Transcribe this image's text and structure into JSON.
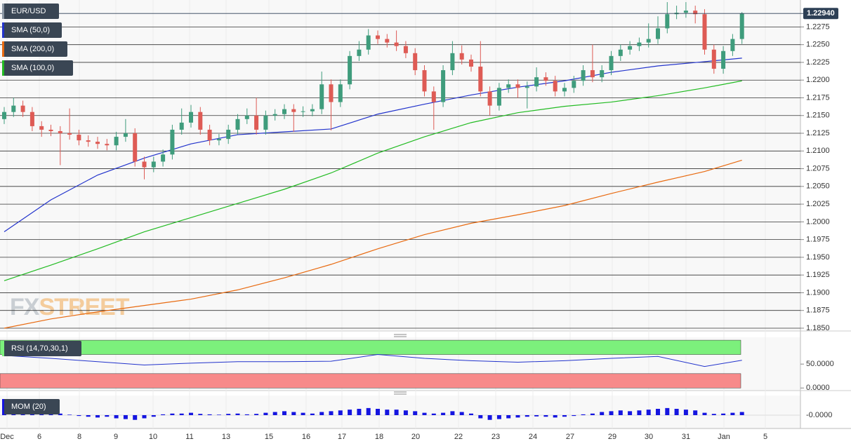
{
  "chart_data": {
    "type": "candlestick",
    "symbol": "EUR/USD",
    "last_price": {
      "value": 1.2294,
      "label": "1.22940"
    },
    "up_color": "#3f9c7c",
    "down_color": "#de5b55",
    "candles": {
      "open": [
        1.2145,
        1.2155,
        1.2164,
        1.2155,
        1.2135,
        1.213,
        1.2128,
        1.2125,
        1.2123,
        1.2115,
        1.2113,
        1.211,
        1.2108,
        1.212,
        1.2125,
        1.2085,
        1.2077,
        1.2085,
        1.2095,
        1.213,
        1.214,
        1.2155,
        1.213,
        1.2115,
        1.2117,
        1.213,
        1.2145,
        1.215,
        1.213,
        1.215,
        1.2152,
        1.2159,
        1.2155,
        1.2156,
        1.2159,
        1.2194,
        1.2169,
        1.2194,
        1.2234,
        1.2243,
        1.2263,
        1.2258,
        1.2253,
        1.2248,
        1.2238,
        1.2214,
        1.2184,
        1.2169,
        1.2214,
        1.2238,
        1.2229,
        1.2219,
        1.2184,
        1.2164,
        1.2189,
        1.2194,
        1.2189,
        1.2191,
        1.2204,
        1.2199,
        1.2184,
        1.2189,
        1.2199,
        1.2214,
        1.2204,
        1.2214,
        1.2234,
        1.2243,
        1.2248,
        1.2253,
        1.2258,
        1.2273,
        1.2293,
        1.2295,
        1.2298,
        1.2293,
        1.2243,
        1.2216,
        1.2241,
        1.2258
      ],
      "high": [
        1.2162,
        1.2175,
        1.2171,
        1.2162,
        1.2142,
        1.2137,
        1.2135,
        1.216,
        1.213,
        1.2122,
        1.212,
        1.2117,
        1.2127,
        1.2145,
        1.2132,
        1.2092,
        1.2092,
        1.2102,
        1.2137,
        1.216,
        1.2165,
        1.2162,
        1.2137,
        1.2124,
        1.2137,
        1.2152,
        1.216,
        1.2175,
        1.2157,
        1.2159,
        1.2166,
        1.2166,
        1.2163,
        1.2166,
        1.2212,
        1.2201,
        1.2201,
        1.2241,
        1.2255,
        1.2272,
        1.227,
        1.2265,
        1.227,
        1.2255,
        1.2245,
        1.2221,
        1.2191,
        1.2221,
        1.2255,
        1.2249,
        1.2236,
        1.2255,
        1.2191,
        1.2196,
        1.2201,
        1.2201,
        1.2198,
        1.2218,
        1.2211,
        1.2206,
        1.2196,
        1.2206,
        1.2221,
        1.225,
        1.2221,
        1.2241,
        1.225,
        1.2255,
        1.226,
        1.228,
        1.229,
        1.231,
        1.2305,
        1.231,
        1.2305,
        1.23,
        1.225,
        1.2248,
        1.2265,
        1.2296
      ],
      "low": [
        1.2138,
        1.2148,
        1.2148,
        1.2128,
        1.212,
        1.2121,
        1.208,
        1.2116,
        1.2108,
        1.2106,
        1.2103,
        1.2101,
        1.2101,
        1.2113,
        1.2078,
        1.206,
        1.207,
        1.2078,
        1.2088,
        1.2123,
        1.2133,
        1.2123,
        1.2108,
        1.2108,
        1.211,
        1.2123,
        1.2138,
        1.2123,
        1.2123,
        1.2143,
        1.2145,
        1.2127,
        1.2148,
        1.2149,
        1.2152,
        1.2129,
        1.2162,
        1.2187,
        1.2227,
        1.2236,
        1.2251,
        1.2246,
        1.2241,
        1.2231,
        1.2207,
        1.2177,
        1.213,
        1.2162,
        1.2207,
        1.2222,
        1.2212,
        1.2177,
        1.215,
        1.2157,
        1.2182,
        1.2175,
        1.216,
        1.2184,
        1.2192,
        1.2177,
        1.2177,
        1.2182,
        1.2192,
        1.2197,
        1.2197,
        1.2207,
        1.2227,
        1.2236,
        1.2241,
        1.2246,
        1.2251,
        1.2266,
        1.2286,
        1.2288,
        1.228,
        1.2236,
        1.2209,
        1.2209,
        1.2234,
        1.2251
      ],
      "close": [
        1.2155,
        1.2164,
        1.2155,
        1.2135,
        1.213,
        1.2128,
        1.2125,
        1.2123,
        1.2115,
        1.2113,
        1.211,
        1.2108,
        1.212,
        1.2125,
        1.2085,
        1.2077,
        1.2085,
        1.2095,
        1.213,
        1.214,
        1.2155,
        1.213,
        1.2115,
        1.2117,
        1.213,
        1.2145,
        1.215,
        1.213,
        1.215,
        1.2152,
        1.2159,
        1.2155,
        1.2156,
        1.2159,
        1.2194,
        1.2169,
        1.2194,
        1.2234,
        1.2243,
        1.2263,
        1.2258,
        1.2253,
        1.2248,
        1.2238,
        1.2214,
        1.2184,
        1.2169,
        1.2214,
        1.2238,
        1.2229,
        1.2219,
        1.2184,
        1.2164,
        1.2189,
        1.2194,
        1.2189,
        1.2191,
        1.2204,
        1.2199,
        1.2184,
        1.2189,
        1.2199,
        1.2214,
        1.2204,
        1.2214,
        1.2234,
        1.2243,
        1.2248,
        1.2253,
        1.2258,
        1.2273,
        1.2293,
        1.2295,
        1.2298,
        1.2293,
        1.2243,
        1.2216,
        1.2241,
        1.2258,
        1.2294
      ]
    },
    "ylim": [
      1.1848,
      1.2313
    ],
    "yticks": [
      {
        "value": 1.185,
        "label": "1.1850"
      },
      {
        "value": 1.1875,
        "label": "1.1875"
      },
      {
        "value": 1.19,
        "label": "1.1900"
      },
      {
        "value": 1.1925,
        "label": "1.1925"
      },
      {
        "value": 1.195,
        "label": "1.1950"
      },
      {
        "value": 1.1975,
        "label": "1.1975"
      },
      {
        "value": 1.2,
        "label": "1.2000"
      },
      {
        "value": 1.2025,
        "label": "1.2025"
      },
      {
        "value": 1.205,
        "label": "1.2050"
      },
      {
        "value": 1.2075,
        "label": "1.2075"
      },
      {
        "value": 1.21,
        "label": "1.2100"
      },
      {
        "value": 1.2125,
        "label": "1.2125"
      },
      {
        "value": 1.215,
        "label": "1.2150"
      },
      {
        "value": 1.2175,
        "label": "1.2175"
      },
      {
        "value": 1.22,
        "label": "1.2200"
      },
      {
        "value": 1.2225,
        "label": "1.2225"
      },
      {
        "value": 1.225,
        "label": "1.2250"
      },
      {
        "value": 1.2275,
        "label": "1.2275"
      }
    ],
    "xticks": [
      "Dec",
      "6",
      "8",
      "9",
      "10",
      "11",
      "13",
      "15",
      "16",
      "17",
      "18",
      "20",
      "22",
      "23",
      "24",
      "27",
      "29",
      "30",
      "31",
      "Jan",
      "5"
    ],
    "overlays": [
      {
        "name": "SMA (50,0)",
        "color": "#2233cc",
        "x": [
          0,
          5,
          10,
          15,
          20,
          25,
          30,
          35,
          40,
          45,
          50,
          55,
          60,
          65,
          70,
          75,
          79
        ],
        "values": [
          1.1986,
          1.2031,
          1.2066,
          1.209,
          1.211,
          1.2123,
          1.2127,
          1.2131,
          1.2152,
          1.2166,
          1.2179,
          1.219,
          1.2199,
          1.2211,
          1.222,
          1.2226,
          1.2231
        ]
      },
      {
        "name": "SMA (200,0)",
        "color": "#e86a10",
        "x": [
          0,
          5,
          10,
          15,
          20,
          25,
          30,
          35,
          40,
          45,
          50,
          55,
          60,
          65,
          70,
          75,
          79
        ],
        "values": [
          1.185,
          1.1863,
          1.1873,
          1.1882,
          1.1891,
          1.1904,
          1.1921,
          1.194,
          1.1962,
          1.1982,
          1.1998,
          1.201,
          1.2023,
          1.204,
          1.2056,
          1.2071,
          1.2087
        ]
      },
      {
        "name": "SMA (100,0)",
        "color": "#22bb22",
        "x": [
          0,
          5,
          10,
          15,
          20,
          25,
          30,
          35,
          40,
          45,
          50,
          55,
          60,
          65,
          70,
          75,
          79
        ],
        "values": [
          1.1917,
          1.1939,
          1.1962,
          1.1986,
          1.2006,
          1.2026,
          1.2046,
          1.2069,
          1.2097,
          1.212,
          1.214,
          1.2154,
          1.2163,
          1.2169,
          1.2178,
          1.2189,
          1.2199
        ]
      }
    ],
    "watermark": [
      "FX",
      "STREET"
    ],
    "rsi": {
      "name": "RSI (14,70,30,1)",
      "color": "#2233cc",
      "x": [
        0,
        5,
        10,
        15,
        20,
        25,
        30,
        35,
        40,
        45,
        50,
        55,
        60,
        65,
        70,
        75,
        79
      ],
      "values": [
        68,
        62,
        55,
        48,
        52,
        55,
        55,
        56,
        70,
        62,
        57,
        54,
        57,
        62,
        66,
        45,
        58
      ],
      "ylim": [
        -4,
        106
      ],
      "overbought": [
        70,
        100
      ],
      "oversold": [
        0,
        30
      ],
      "upper_color": "#7cf07c",
      "lower_color": "#f78a8a",
      "yticks": [
        {
          "value": 50,
          "label": "50.0000"
        },
        {
          "value": 0,
          "label": "0.0000"
        }
      ]
    },
    "mom": {
      "name": "MOM (20)",
      "color": "#1515e0",
      "values": [
        0.006,
        0.0065,
        0.005,
        0.004,
        0.003,
        0.002,
        0.001,
        0.0003,
        -0.0005,
        -0.001,
        -0.0015,
        -0.001,
        -0.002,
        -0.0025,
        -0.003,
        -0.002,
        -0.001,
        0.0005,
        0.001,
        0.001,
        0.0015,
        0.0008,
        0.0005,
        0.0003,
        0.0008,
        0.001,
        0.0005,
        0.0008,
        0.0015,
        0.002,
        0.0025,
        0.002,
        0.0015,
        0.001,
        0.002,
        0.0025,
        0.003,
        0.0035,
        0.004,
        0.0045,
        0.004,
        0.0035,
        0.0035,
        0.003,
        0.0025,
        0.0015,
        0.001,
        0.0015,
        0.0025,
        0.002,
        0.001,
        -0.002,
        -0.003,
        -0.0025,
        -0.002,
        -0.0015,
        -0.001,
        -0.0008,
        -0.001,
        -0.0015,
        -0.001,
        -0.0005,
        0.0005,
        0.001,
        0.002,
        0.0025,
        0.003,
        0.0025,
        0.003,
        0.0035,
        0.004,
        0.0045,
        0.004,
        0.0035,
        0.003,
        0.0015,
        0.0008,
        0.001,
        0.0015,
        0.002
      ],
      "ylim": [
        -0.008,
        0.012
      ],
      "yticks": [
        {
          "value": 0,
          "label": "-0.0000"
        }
      ]
    }
  }
}
